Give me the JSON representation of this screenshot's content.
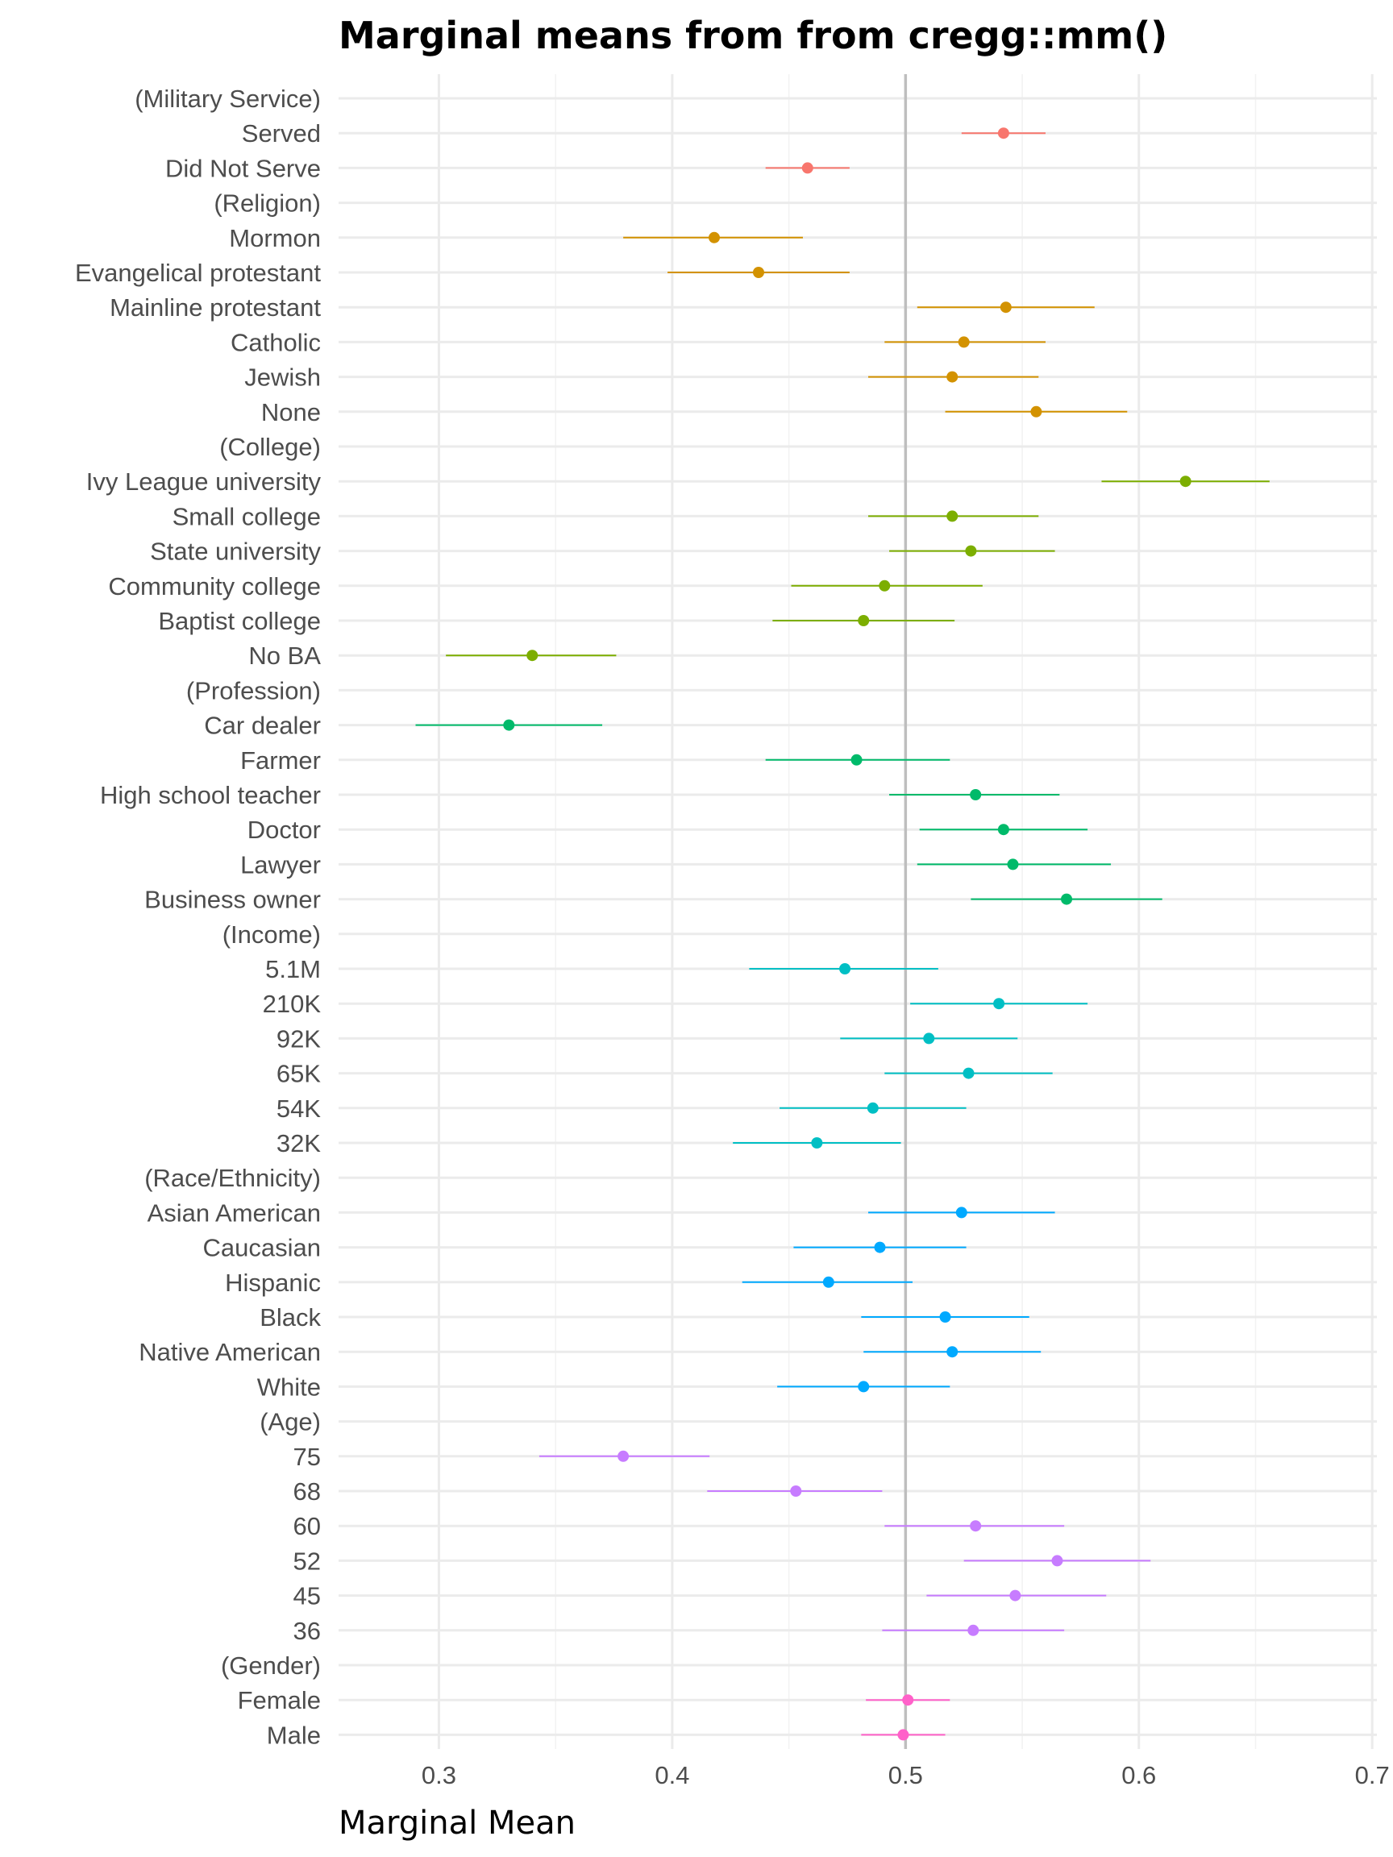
{
  "chart_data": {
    "type": "scatter",
    "title": "Marginal means from from cregg::mm()",
    "xlabel": "Marginal Mean",
    "ylabel": "",
    "xlim": [
      0.257,
      0.702
    ],
    "xticks": [
      0.3,
      0.4,
      0.5,
      0.6,
      0.7
    ],
    "xtick_labels": [
      "0.3",
      "0.4",
      "0.5",
      "0.6",
      "0.7"
    ],
    "reference_line": 0.5,
    "reference_color": "#bebebe",
    "grid": true,
    "legend": "none",
    "rows": [
      {
        "label": "(Military Service)",
        "header": true
      },
      {
        "label": "Served",
        "group": "Military Service",
        "estimate": 0.542,
        "lower": 0.524,
        "upper": 0.56
      },
      {
        "label": "Did Not Serve",
        "group": "Military Service",
        "estimate": 0.458,
        "lower": 0.44,
        "upper": 0.476
      },
      {
        "label": "(Religion)",
        "header": true
      },
      {
        "label": "Mormon",
        "group": "Religion",
        "estimate": 0.418,
        "lower": 0.379,
        "upper": 0.456
      },
      {
        "label": "Evangelical protestant",
        "group": "Religion",
        "estimate": 0.437,
        "lower": 0.398,
        "upper": 0.476
      },
      {
        "label": "Mainline protestant",
        "group": "Religion",
        "estimate": 0.543,
        "lower": 0.505,
        "upper": 0.581
      },
      {
        "label": "Catholic",
        "group": "Religion",
        "estimate": 0.525,
        "lower": 0.491,
        "upper": 0.56
      },
      {
        "label": "Jewish",
        "group": "Religion",
        "estimate": 0.52,
        "lower": 0.484,
        "upper": 0.557
      },
      {
        "label": "None",
        "group": "Religion",
        "estimate": 0.556,
        "lower": 0.517,
        "upper": 0.595
      },
      {
        "label": "(College)",
        "header": true
      },
      {
        "label": "Ivy League university",
        "group": "College",
        "estimate": 0.62,
        "lower": 0.584,
        "upper": 0.656
      },
      {
        "label": "Small college",
        "group": "College",
        "estimate": 0.52,
        "lower": 0.484,
        "upper": 0.557
      },
      {
        "label": "State university",
        "group": "College",
        "estimate": 0.528,
        "lower": 0.493,
        "upper": 0.564
      },
      {
        "label": "Community college",
        "group": "College",
        "estimate": 0.491,
        "lower": 0.451,
        "upper": 0.533
      },
      {
        "label": "Baptist college",
        "group": "College",
        "estimate": 0.482,
        "lower": 0.443,
        "upper": 0.521
      },
      {
        "label": "No BA",
        "group": "College",
        "estimate": 0.34,
        "lower": 0.303,
        "upper": 0.376
      },
      {
        "label": "(Profession)",
        "header": true
      },
      {
        "label": "Car dealer",
        "group": "Profession",
        "estimate": 0.33,
        "lower": 0.29,
        "upper": 0.37
      },
      {
        "label": "Farmer",
        "group": "Profession",
        "estimate": 0.479,
        "lower": 0.44,
        "upper": 0.519
      },
      {
        "label": "High school teacher",
        "group": "Profession",
        "estimate": 0.53,
        "lower": 0.493,
        "upper": 0.566
      },
      {
        "label": "Doctor",
        "group": "Profession",
        "estimate": 0.542,
        "lower": 0.506,
        "upper": 0.578
      },
      {
        "label": "Lawyer",
        "group": "Profession",
        "estimate": 0.546,
        "lower": 0.505,
        "upper": 0.588
      },
      {
        "label": "Business owner",
        "group": "Profession",
        "estimate": 0.569,
        "lower": 0.528,
        "upper": 0.61
      },
      {
        "label": "(Income)",
        "header": true
      },
      {
        "label": "5.1M",
        "group": "Income",
        "estimate": 0.474,
        "lower": 0.433,
        "upper": 0.514
      },
      {
        "label": "210K",
        "group": "Income",
        "estimate": 0.54,
        "lower": 0.502,
        "upper": 0.578
      },
      {
        "label": "92K",
        "group": "Income",
        "estimate": 0.51,
        "lower": 0.472,
        "upper": 0.548
      },
      {
        "label": "65K",
        "group": "Income",
        "estimate": 0.527,
        "lower": 0.491,
        "upper": 0.563
      },
      {
        "label": "54K",
        "group": "Income",
        "estimate": 0.486,
        "lower": 0.446,
        "upper": 0.526
      },
      {
        "label": "32K",
        "group": "Income",
        "estimate": 0.462,
        "lower": 0.426,
        "upper": 0.498
      },
      {
        "label": "(Race/Ethnicity)",
        "header": true
      },
      {
        "label": "Asian American",
        "group": "Race/Ethnicity",
        "estimate": 0.524,
        "lower": 0.484,
        "upper": 0.564
      },
      {
        "label": "Caucasian",
        "group": "Race/Ethnicity",
        "estimate": 0.489,
        "lower": 0.452,
        "upper": 0.526
      },
      {
        "label": "Hispanic",
        "group": "Race/Ethnicity",
        "estimate": 0.467,
        "lower": 0.43,
        "upper": 0.503
      },
      {
        "label": "Black",
        "group": "Race/Ethnicity",
        "estimate": 0.517,
        "lower": 0.481,
        "upper": 0.553
      },
      {
        "label": "Native American",
        "group": "Race/Ethnicity",
        "estimate": 0.52,
        "lower": 0.482,
        "upper": 0.558
      },
      {
        "label": "White",
        "group": "Race/Ethnicity",
        "estimate": 0.482,
        "lower": 0.445,
        "upper": 0.519
      },
      {
        "label": "(Age)",
        "header": true
      },
      {
        "label": "75",
        "group": "Age",
        "estimate": 0.379,
        "lower": 0.343,
        "upper": 0.416
      },
      {
        "label": "68",
        "group": "Age",
        "estimate": 0.453,
        "lower": 0.415,
        "upper": 0.49
      },
      {
        "label": "60",
        "group": "Age",
        "estimate": 0.53,
        "lower": 0.491,
        "upper": 0.568
      },
      {
        "label": "52",
        "group": "Age",
        "estimate": 0.565,
        "lower": 0.525,
        "upper": 0.605
      },
      {
        "label": "45",
        "group": "Age",
        "estimate": 0.547,
        "lower": 0.509,
        "upper": 0.586
      },
      {
        "label": "36",
        "group": "Age",
        "estimate": 0.529,
        "lower": 0.49,
        "upper": 0.568
      },
      {
        "label": "(Gender)",
        "header": true
      },
      {
        "label": "Female",
        "group": "Gender",
        "estimate": 0.501,
        "lower": 0.483,
        "upper": 0.519
      },
      {
        "label": "Male",
        "group": "Gender",
        "estimate": 0.499,
        "lower": 0.481,
        "upper": 0.517
      }
    ],
    "group_colors": {
      "Military Service": "#F8766D",
      "Religion": "#D39200",
      "College": "#7CAE00",
      "Profession": "#00BA6A",
      "Income": "#00BFC4",
      "Race/Ethnicity": "#00A9FF",
      "Age": "#C77CFF",
      "Gender": "#FF61C9"
    }
  }
}
